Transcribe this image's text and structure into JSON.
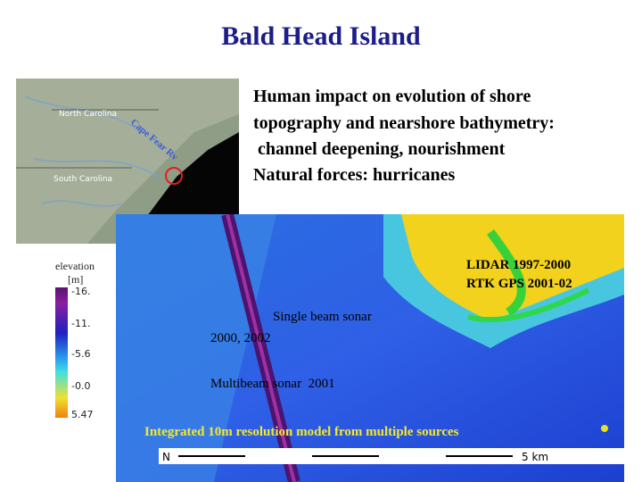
{
  "title": "Bald Head Island",
  "description": {
    "lines": [
      "Human impact on evolution of shore",
      "topography and nearshore bathymetry:",
      " channel deepening, nourishment",
      "Natural forces: hurricanes"
    ]
  },
  "location_map": {
    "labels": [
      "North Carolina",
      "South Carolina",
      "Cape Fear Rv"
    ]
  },
  "colorbar": {
    "title": "elevation",
    "unit": "[m]",
    "tick_labels": [
      "-16.",
      "-11.",
      "-5.6",
      "-0.0",
      "5.47"
    ]
  },
  "bathymetry": {
    "annotations": {
      "lidar": [
        "LIDAR 1997-2000",
        "RTK GPS 2001-02"
      ],
      "single_beam": [
        "Single beam sonar",
        "2000, 2002"
      ],
      "multibeam": "Multibeam sonar  2001",
      "integrated": "Integrated 10m resolution model from multiple sources"
    }
  },
  "scale_bar": {
    "north": "N",
    "distance": "5 km"
  }
}
